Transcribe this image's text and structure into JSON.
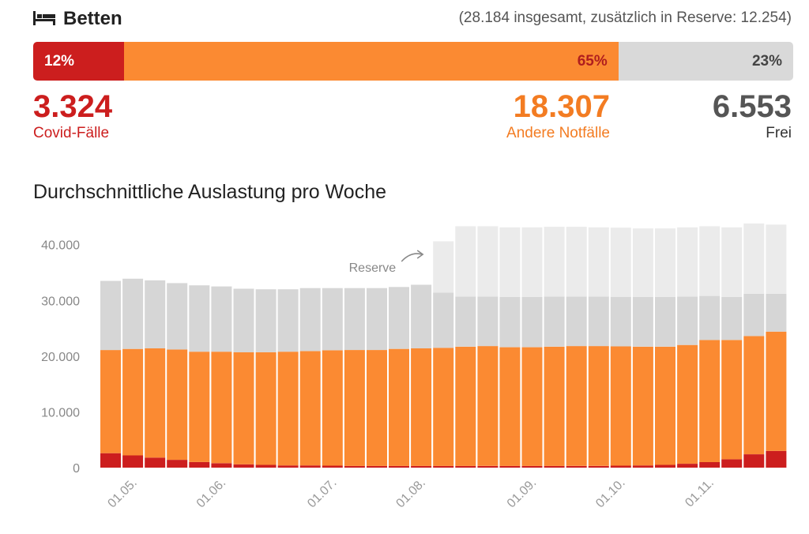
{
  "beds": {
    "icon": "bed-icon",
    "title": "Betten",
    "total_text": "(28.184 insgesamt, zusätzlich in Reserve: 12.254)",
    "segments": [
      {
        "key": "covid",
        "percent": 12,
        "label": "12%",
        "value": "3.324",
        "name": "Covid-Fälle",
        "color": "#cc1e1e"
      },
      {
        "key": "other",
        "percent": 65,
        "label": "65%",
        "value": "18.307",
        "name": "Andere Notfälle",
        "color": "#fb8a32"
      },
      {
        "key": "free",
        "percent": 23,
        "label": "23%",
        "value": "6.553",
        "name": "Frei",
        "color": "#d9d9d9"
      }
    ]
  },
  "chart_data": {
    "type": "bar",
    "stacked": true,
    "title": "Durchschnittliche Auslastung pro Woche",
    "xlabel": "",
    "ylabel": "",
    "ylim": [
      0,
      43500
    ],
    "yticks": [
      0,
      10000,
      20000,
      30000,
      40000
    ],
    "ytick_labels": [
      "0",
      "10.000",
      "20.000",
      "30.000",
      "40.000"
    ],
    "xtick_labels": [
      {
        "label": "01.05.",
        "index": 1
      },
      {
        "label": "01.06.",
        "index": 5
      },
      {
        "label": "01.07.",
        "index": 10
      },
      {
        "label": "01.08.",
        "index": 14
      },
      {
        "label": "01.09.",
        "index": 19
      },
      {
        "label": "01.10.",
        "index": 23
      },
      {
        "label": "01.11.",
        "index": 27
      }
    ],
    "annotation": {
      "text": "Reserve",
      "index": 15
    },
    "grid": false,
    "legend": "none",
    "series": [
      {
        "key": "covid",
        "color": "#cc1e1e",
        "values": [
          2600,
          2200,
          1800,
          1400,
          1000,
          800,
          600,
          500,
          400,
          400,
          350,
          300,
          300,
          300,
          300,
          300,
          300,
          300,
          300,
          300,
          300,
          300,
          300,
          350,
          400,
          500,
          700,
          1000,
          1500,
          2400,
          3000
        ]
      },
      {
        "key": "other",
        "color": "#fb8a32",
        "values": [
          18500,
          19100,
          19600,
          19800,
          19800,
          20000,
          20100,
          20200,
          20400,
          20500,
          20700,
          20800,
          20800,
          21000,
          21100,
          21200,
          21400,
          21500,
          21300,
          21300,
          21400,
          21500,
          21500,
          21400,
          21300,
          21200,
          21300,
          21900,
          21400,
          21200,
          21400
        ]
      },
      {
        "key": "free",
        "color": "#d6d6d6",
        "values": [
          12400,
          12600,
          12200,
          11900,
          11900,
          11700,
          11400,
          11300,
          11200,
          11300,
          11150,
          11100,
          11100,
          11100,
          11400,
          9900,
          9000,
          8900,
          9000,
          9000,
          9000,
          8900,
          8900,
          8900,
          8900,
          8900,
          8700,
          7900,
          7700,
          7600,
          6800
        ]
      },
      {
        "key": "reserve",
        "color": "#ebebeb",
        "values": [
          0,
          0,
          0,
          0,
          0,
          0,
          0,
          0,
          0,
          0,
          0,
          0,
          0,
          0,
          0,
          9200,
          12600,
          12600,
          12500,
          12500,
          12500,
          12500,
          12400,
          12400,
          12300,
          12300,
          12400,
          12500,
          12500,
          12600,
          12400
        ]
      }
    ]
  }
}
